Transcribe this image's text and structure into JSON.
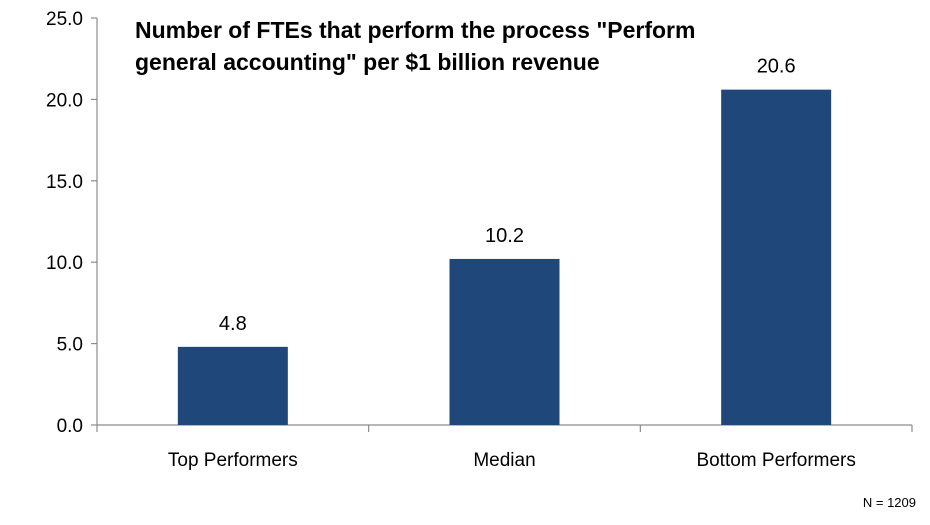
{
  "chart_data": {
    "type": "bar",
    "title": "Number of FTEs that perform the process \"Perform\ngeneral accounting\" per $1 billion revenue",
    "categories": [
      "Top Performers",
      "Median",
      "Bottom Performers"
    ],
    "values": [
      4.8,
      10.2,
      20.6
    ],
    "value_labels": [
      "4.8",
      "10.2",
      "20.6"
    ],
    "xlabel": "",
    "ylabel": "",
    "ylim": [
      0,
      25
    ],
    "yticks": [
      0,
      5,
      10,
      15,
      20,
      25
    ],
    "ytick_labels": [
      "0.0",
      "5.0",
      "10.0",
      "15.0",
      "20.0",
      "25.0"
    ],
    "grid": false,
    "legend": "none",
    "colors": {
      "bar": "#1f477a",
      "axis": "#8c8c8c"
    }
  },
  "note": "N = 1209"
}
